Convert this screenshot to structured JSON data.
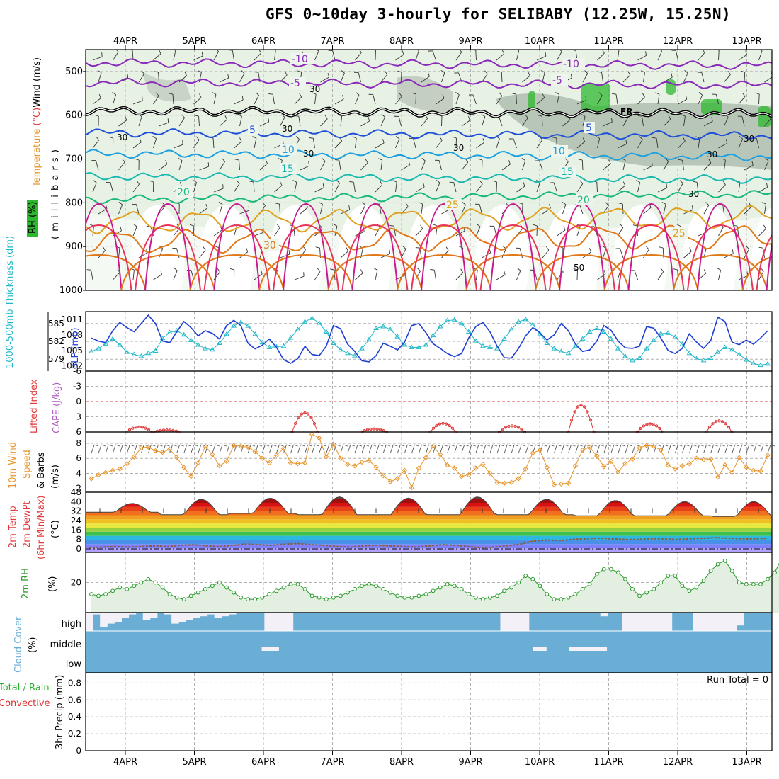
{
  "title": "GFS 0~10day 3-hourly for SELIBABY (12.25W, 15.25N)",
  "colors": {
    "background": "#ffffff",
    "frame": "#000000",
    "grid": "#b0b0b0",
    "rh_green": "#2db82d",
    "cloud_blue": "#6aaed6",
    "thickness_cyan": "#22b8c8",
    "slp_blue": "#1f3fd6",
    "lifted_red": "#e03a3a",
    "wind_orange": "#e8952b",
    "rh2m_green": "#2a9a2a",
    "precip_green": "#30b030",
    "precip_red": "#e03030"
  },
  "chart_data": [
    {
      "type": "contour",
      "panel": "upper-air",
      "dates": [
        "4APR",
        "5APR",
        "6APR",
        "7APR",
        "8APR",
        "9APR",
        "10APR",
        "11APR",
        "12APR",
        "13APR"
      ],
      "ylabel_parts": [
        "Wind (m/s)",
        "Temperature (°C)",
        "RH (%)"
      ],
      "ylabel_units": "( m i l l i b a r s )",
      "pressure_ticks": [
        "500",
        "600",
        "700",
        "800",
        "900",
        "1000"
      ],
      "temperature_labels": [
        "-10",
        "-10",
        "-5",
        "-5",
        "5",
        "5",
        "10",
        "10",
        "15",
        "15",
        "20",
        "20",
        "25",
        "25",
        "30"
      ],
      "levels": [
        {
          "value": -10,
          "pressure": 480,
          "color": "#8a2ab8"
        },
        {
          "value": -5,
          "pressure": 525,
          "color": "#8a2ab8"
        },
        {
          "value": 0,
          "pressure": 590,
          "color": "#000000"
        },
        {
          "value": 5,
          "pressure": 640,
          "color": "#1f4fd8"
        },
        {
          "value": 10,
          "pressure": 688,
          "color": "#1ea0e0"
        },
        {
          "value": 15,
          "pressure": 740,
          "color": "#1ab8b0"
        },
        {
          "value": 20,
          "pressure": 793,
          "color": "#18b878"
        },
        {
          "value": 25,
          "pressure": 845,
          "color": "#e0a020"
        },
        {
          "value": 30,
          "pressure": 890,
          "color": "#e07818"
        }
      ],
      "freezing_label": "FR",
      "rh_contour_labels": [
        "30",
        "30",
        "30",
        "30",
        "30",
        "30",
        "30",
        "50",
        "30"
      ]
    },
    {
      "type": "line",
      "panel": "thickness-slp",
      "ylabel_left": "1000-500mb Thickness (dm)",
      "ylabel_right": "SLP (mb)",
      "thickness_ticks": [
        "585",
        "582",
        "579"
      ],
      "slp_ticks": [
        "1011",
        "1008",
        "1005",
        "1002"
      ],
      "thickness_series": [
        580.3,
        580.8,
        581.6,
        582.4,
        581.4,
        580.2,
        579.8,
        579.5,
        580.0,
        580.4,
        582.5,
        583.5,
        583.8,
        583.1,
        582.2,
        581.4,
        580.8,
        580.6,
        581.7,
        583.2,
        584.6,
        585.2,
        584.6,
        583.2,
        581.8,
        581.0,
        581.1,
        581.2,
        582.6,
        584.0,
        585.3,
        585.9,
        585.1,
        583.6,
        581.7,
        580.6,
        580.0,
        579.6,
        580.8,
        582.3,
        584.2,
        584.5,
        584.0,
        582.8,
        581.4,
        581.0,
        581.0,
        581.4,
        583.0,
        584.5,
        585.5,
        585.6,
        585.0,
        583.6,
        582.1,
        581.2,
        581.0,
        580.8,
        582.4,
        584.0,
        585.3,
        585.7,
        584.8,
        583.3,
        581.7,
        580.8,
        580.3,
        580.0,
        581.2,
        582.4,
        583.6,
        584.2,
        583.6,
        582.4,
        580.8,
        579.5,
        578.8,
        579.2,
        580.8,
        582.2,
        583.3,
        583.4,
        582.7,
        581.5,
        580.0,
        579.1,
        578.8,
        579.2,
        580.2,
        581.0,
        580.6,
        579.8,
        578.9,
        578.3,
        578.0,
        578.2
      ],
      "slp_series": [
        1007.4,
        1006.8,
        1006.5,
        1008.8,
        1010.4,
        1009.4,
        1008.6,
        1010.2,
        1011.8,
        1010.2,
        1006.8,
        1006.5,
        1008.6,
        1010.6,
        1009.4,
        1007.8,
        1008.8,
        1008.3,
        1007.2,
        1009.8,
        1010.8,
        1009.8,
        1006.4,
        1005.3,
        1006.0,
        1007.2,
        1005.6,
        1003.2,
        1002.5,
        1003.4,
        1005.8,
        1004.2,
        1004.0,
        1005.8,
        1009.8,
        1009.2,
        1006.2,
        1004.8,
        1003.0,
        1002.8,
        1004.0,
        1006.4,
        1005.8,
        1005.1,
        1006.6,
        1009.8,
        1010.2,
        1008.4,
        1006.3,
        1005.4,
        1004.4,
        1003.8,
        1004.4,
        1007.4,
        1009.6,
        1010.4,
        1008.6,
        1005.8,
        1003.6,
        1003.5,
        1005.4,
        1007.8,
        1009.4,
        1008.4,
        1007.0,
        1008.0,
        1010.2,
        1008.8,
        1006.2,
        1004.8,
        1005.1,
        1006.8,
        1009.8,
        1008.9,
        1006.8,
        1005.5,
        1005.4,
        1005.8,
        1009.6,
        1009.3,
        1007.4,
        1005.0,
        1004.4,
        1005.4,
        1008.2,
        1006.6,
        1005.4,
        1006.9,
        1011.4,
        1010.6,
        1006.6,
        1006.1,
        1007.0,
        1006.2,
        1007.4,
        1008.8
      ]
    },
    {
      "type": "line",
      "panel": "lifted-index-cape",
      "ylabel_left": "Lifted Index",
      "ylabel_right": "CAPE (J/kg)",
      "ticks": [
        "-6",
        "-3",
        "0",
        "3",
        "6"
      ],
      "lifted_index_bumps": [
        {
          "day": 0.2,
          "min": 5.0
        },
        {
          "day": 0.6,
          "min": 5.6
        },
        {
          "day": 2.6,
          "min": 2.2
        },
        {
          "day": 3.6,
          "min": 5.4
        },
        {
          "day": 4.6,
          "min": 4.3
        },
        {
          "day": 5.6,
          "min": 4.8
        },
        {
          "day": 6.6,
          "min": 0.7
        },
        {
          "day": 7.6,
          "min": 4.4
        },
        {
          "day": 8.6,
          "min": 3.8
        }
      ]
    },
    {
      "type": "line",
      "panel": "wind10m",
      "ylabel": "10m Wind Speed & Barbs (m/s)",
      "ticks": [
        "2",
        "4",
        "6",
        "8"
      ],
      "speed_series": [
        3.3,
        3.8,
        4.1,
        4.4,
        4.6,
        5.3,
        6.2,
        7.4,
        7.5,
        7.0,
        6.8,
        7.2,
        6.1,
        4.8,
        3.6,
        5.4,
        7.6,
        6.5,
        5.0,
        5.6,
        7.7,
        7.6,
        7.5,
        6.9,
        6.0,
        5.4,
        6.4,
        7.3,
        5.4,
        5.3,
        5.4,
        9.2,
        8.7,
        6.2,
        7.9,
        6.0,
        5.2,
        5.0,
        5.5,
        5.7,
        4.8,
        3.7,
        2.9,
        3.3,
        4.4,
        2.1,
        4.7,
        6.1,
        7.6,
        6.5,
        5.1,
        4.7,
        3.6,
        3.8,
        4.7,
        5.2,
        4.0,
        2.8,
        2.7,
        2.8,
        3.3,
        4.6,
        6.7,
        7.1,
        4.8,
        2.5,
        2.6,
        2.7,
        5.0,
        7.1,
        7.5,
        6.3,
        4.9,
        5.6,
        4.2,
        5.3,
        5.9,
        7.4,
        7.7,
        7.6,
        7.1,
        5.1,
        4.6,
        5.0,
        5.3,
        6.0,
        5.8,
        5.9,
        3.5,
        5.1,
        4.1,
        6.1,
        4.8,
        4.4,
        4.3,
        6.4
      ]
    },
    {
      "type": "area",
      "panel": "temp2m",
      "ylabel": "2m Temp 2m DewPt (6hr Min/Max) (°C)",
      "ticks": [
        "0",
        "8",
        "16",
        "24",
        "32",
        "40",
        "48"
      ],
      "band_colors": [
        "#b0a0ff",
        "#8080ff",
        "#4a90e8",
        "#2db8e0",
        "#3cc050",
        "#9ad040",
        "#e8e840",
        "#f0c020",
        "#f0a020",
        "#f07020",
        "#e84018",
        "#d81010",
        "#a01010",
        "#6a4040"
      ],
      "temp_daily_max": [
        38.5,
        42.0,
        43.0,
        44.0,
        43.0,
        44.0,
        42.0,
        41.0,
        40.0,
        40.0
      ],
      "temp_daily_min": [
        31.0,
        29.0,
        30.0,
        29.0,
        29.0,
        29.0,
        29.0,
        28.0,
        28.0,
        27.5
      ],
      "dewpoint_series": [
        1.0,
        1.5,
        2.0,
        1.5,
        2.0,
        2.5,
        2.0,
        3.0,
        3.5,
        2.5,
        2.0,
        3.0,
        4.0,
        3.5,
        3.0,
        4.0,
        4.5,
        3.5,
        3.0,
        2.0,
        1.5,
        2.5,
        3.0,
        2.5,
        2.0,
        1.5,
        2.5,
        3.5,
        3.0,
        2.0,
        1.0,
        1.5,
        2.5,
        4.0,
        6.5,
        7.5,
        7.0,
        8.0,
        8.5,
        9.0,
        8.5,
        8.0,
        8.0,
        8.5,
        8.5,
        8.0,
        8.5,
        9.0,
        9.5,
        9.0,
        8.5,
        8.5,
        9.0
      ]
    },
    {
      "type": "area",
      "panel": "rh2m",
      "ylabel": "2m RH (%)",
      "ticks": [
        "20"
      ],
      "rh_series": [
        13,
        12,
        13,
        15,
        17,
        16,
        18,
        20,
        22,
        20,
        17,
        13,
        11,
        10,
        12,
        14,
        16,
        18,
        20,
        17,
        14,
        11,
        10,
        10,
        11,
        13,
        15,
        17,
        19,
        19,
        16,
        12,
        11,
        10,
        11,
        12,
        14,
        16,
        18,
        19,
        18,
        16,
        14,
        12,
        11,
        11,
        12,
        13,
        15,
        17,
        19,
        18,
        16,
        13,
        11,
        10,
        11,
        12,
        15,
        17,
        20,
        24,
        22,
        18,
        13,
        10,
        10,
        11,
        13,
        16,
        19,
        25,
        28,
        28,
        26,
        22,
        16,
        12,
        14,
        16,
        20,
        24,
        24,
        18,
        15,
        17,
        21,
        27,
        31,
        33,
        27,
        20,
        19,
        19,
        19,
        22,
        26,
        35
      ]
    },
    {
      "type": "heatmap",
      "panel": "cloud",
      "ylabel": "Cloud Cover (%)",
      "layers": [
        "high",
        "middle",
        "low"
      ],
      "high_cover": [
        0.0,
        0.9,
        0.2,
        0.4,
        0.5,
        0.7,
        0.9,
        1.0,
        0.6,
        0.7,
        1.0,
        0.9,
        0.4,
        0.5,
        0.6,
        0.7,
        0.8,
        0.9,
        0.7,
        0.8,
        0.9,
        1.0,
        1.0,
        1.0,
        1.0,
        0.0,
        0.0,
        0.0,
        0.0,
        1.0,
        1.0,
        1.0,
        1.0,
        1.0,
        1.0,
        1.0,
        1.0,
        1.0,
        1.0,
        1.0,
        1.0,
        1.0,
        1.0,
        1.0,
        1.0,
        1.0,
        1.0,
        1.0,
        1.0,
        1.0,
        1.0,
        1.0,
        1.0,
        1.0,
        1.0,
        1.0,
        1.0,
        1.0,
        0.0,
        0.0,
        0.0,
        0.0,
        1.0,
        1.0,
        1.0,
        1.0,
        1.0,
        1.0,
        1.0,
        1.0,
        1.0,
        1.0,
        0.8,
        1.0,
        1.0,
        0.0,
        0.0,
        0.0,
        0.0,
        0.0,
        0.0,
        0.0,
        1.0,
        1.0,
        1.0,
        0.0,
        0.0,
        0.0,
        0.0,
        0.0,
        0.0,
        0.3,
        1.0,
        1.0,
        1.0,
        1.0
      ],
      "middle_gaps": [
        {
          "day": 2.1,
          "width": 0.25
        },
        {
          "day": 6.0,
          "width": 0.2
        },
        {
          "day": 6.7,
          "width": 0.55
        }
      ]
    },
    {
      "type": "bar",
      "panel": "precip",
      "ylabel": "3hr Precip (mm)",
      "ylabel_extra": "Total / Rain",
      "ylabel_extra2": "Convective",
      "run_total_label": "Run Total = 0",
      "ticks": [
        "0",
        "0.2",
        "0.4",
        "0.6",
        "0.8"
      ],
      "values": []
    }
  ]
}
